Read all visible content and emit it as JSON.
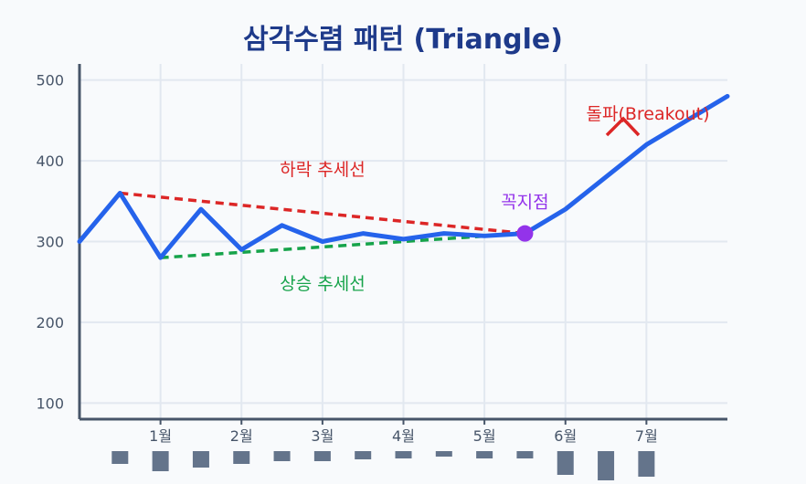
{
  "chart_data": {
    "type": "line",
    "title": "삼각수렴 패턴 (Triangle)",
    "xlabel": "",
    "ylabel": "",
    "x_ticks": [
      {
        "x": 1,
        "label": "1월"
      },
      {
        "x": 2,
        "label": "2월"
      },
      {
        "x": 3,
        "label": "3월"
      },
      {
        "x": 4,
        "label": "4월"
      },
      {
        "x": 5,
        "label": "5월"
      },
      {
        "x": 6,
        "label": "6월"
      },
      {
        "x": 7,
        "label": "7월"
      }
    ],
    "y_ticks": [
      100,
      200,
      300,
      400,
      500
    ],
    "xlim": [
      0,
      8
    ],
    "ylim": [
      80,
      520
    ],
    "grid": true,
    "series": [
      {
        "name": "",
        "color": "#2563eb",
        "x": [
          0,
          0.5,
          1,
          1.5,
          2,
          2.5,
          3,
          3.5,
          4,
          4.5,
          5,
          5.5,
          6,
          7,
          8
        ],
        "y": [
          300,
          360,
          280,
          340,
          290,
          320,
          300,
          310,
          303,
          310,
          307,
          310,
          340,
          420,
          480
        ]
      }
    ],
    "trendlines": [
      {
        "label": "하락 추세선",
        "color": "#dc2626",
        "x": [
          0.5,
          5.5
        ],
        "y": [
          360,
          310
        ]
      },
      {
        "label": "상승 추세선",
        "color": "#16a34a",
        "x": [
          1,
          5.5
        ],
        "y": [
          280,
          310
        ]
      }
    ],
    "apex": {
      "label": "꼭지점",
      "x": 5.5,
      "y": 310,
      "color": "#9333ea"
    },
    "breakout": {
      "label": "돌파(Breakout)",
      "color": "#dc2626"
    },
    "volume": {
      "color": "#64748b",
      "x": [
        0.5,
        1,
        1.5,
        2,
        2.5,
        3,
        3.5,
        4,
        4.5,
        5,
        5.5,
        6,
        6.5,
        7
      ],
      "values": [
        14,
        22,
        18,
        14,
        11,
        11,
        9,
        8,
        6,
        8,
        8,
        26,
        32,
        28
      ]
    }
  }
}
